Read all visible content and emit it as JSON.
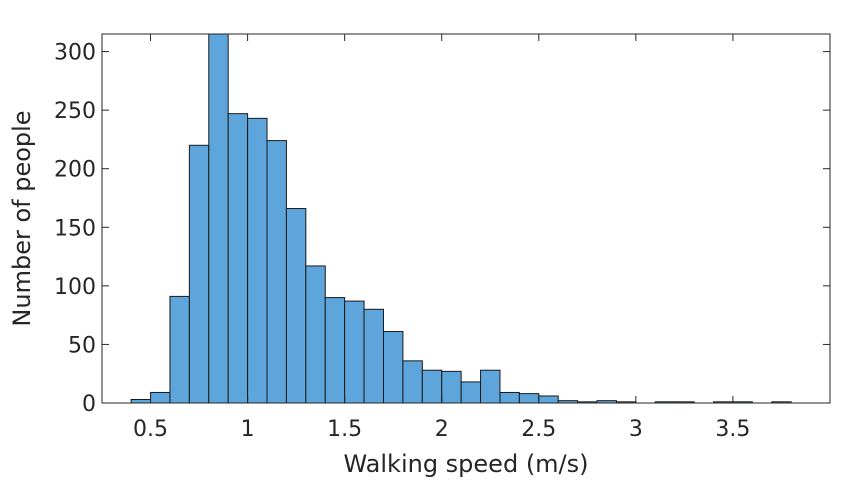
{
  "chart_data": {
    "type": "bar",
    "title": "",
    "xlabel": "Walking speed (m/s)",
    "ylabel": "Number of people",
    "xlim": [
      0.25,
      4.0
    ],
    "ylim": [
      0,
      315
    ],
    "xticks": [
      0.5,
      1,
      1.5,
      2,
      2.5,
      3,
      3.5
    ],
    "xtick_labels": [
      "0.5",
      "1",
      "1.5",
      "2",
      "2.5",
      "3",
      "3.5"
    ],
    "yticks": [
      0,
      50,
      100,
      150,
      200,
      250,
      300
    ],
    "ytick_labels": [
      "0",
      "50",
      "100",
      "150",
      "200",
      "250",
      "300"
    ],
    "bin_width": 0.1,
    "bin_starts": [
      0.4,
      0.5,
      0.6,
      0.7,
      0.8,
      0.9,
      1.0,
      1.1,
      1.2,
      1.3,
      1.4,
      1.5,
      1.6,
      1.7,
      1.8,
      1.9,
      2.0,
      2.1,
      2.2,
      2.3,
      2.4,
      2.5,
      2.6,
      2.7,
      2.8,
      2.9,
      3.0,
      3.1,
      3.2,
      3.3,
      3.4,
      3.5,
      3.6,
      3.7
    ],
    "values": [
      3,
      9,
      91,
      220,
      317,
      247,
      243,
      224,
      166,
      117,
      90,
      87,
      80,
      61,
      36,
      28,
      27,
      18,
      28,
      9,
      8,
      6,
      2,
      1,
      2,
      1,
      0,
      1,
      1,
      0,
      1,
      1,
      0,
      1
    ],
    "bar_color": "#5da5da",
    "edge_color": "#1a1a1a",
    "grid": false
  }
}
